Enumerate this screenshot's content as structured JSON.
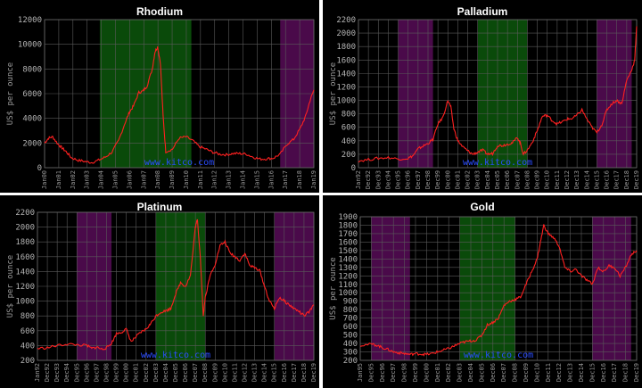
{
  "chart_data": [
    {
      "type": "line",
      "title": "Rhodium",
      "ylabel": "US$ per ounce",
      "watermark": "www.kitco.com",
      "line_color": "#ff2020",
      "x_tick_labels": [
        "Jan00",
        "Jan01",
        "Jan02",
        "Jan03",
        "Jan04",
        "Jan05",
        "Jan06",
        "Jan07",
        "Jan08",
        "Jan09",
        "Jan10",
        "Jan11",
        "Jan12",
        "Jan13",
        "Jan14",
        "Jan15",
        "Jan16",
        "Jan17",
        "Jan18",
        "Jan19"
      ],
      "y_ticks": [
        0,
        2000,
        4000,
        6000,
        8000,
        10000,
        12000
      ],
      "ylim": [
        0,
        12000
      ],
      "xlim": [
        2000,
        2020
      ],
      "bands": [
        {
          "from": 2004.1,
          "to": 2010.9,
          "color": "#0a4a0a"
        },
        {
          "from": 2017.5,
          "to": 2020.0,
          "color": "#4a0a4a"
        }
      ],
      "series": [
        {
          "x": [
            2000,
            2000.3,
            2000.6,
            2001,
            2001.3,
            2001.6,
            2002,
            2002.5,
            2003,
            2003.5,
            2004,
            2004.5,
            2005,
            2005.5,
            2006,
            2006.3,
            2006.6,
            2007,
            2007.3,
            2007.6,
            2008,
            2008.2,
            2008.4,
            2008.6,
            2008.8,
            2009,
            2009.5,
            2010,
            2010.5,
            2011,
            2011.5,
            2012,
            2012.5,
            2013,
            2013.5,
            2014,
            2014.5,
            2015,
            2015.5,
            2016,
            2016.5,
            2017,
            2017.5,
            2018,
            2018.5,
            2019,
            2019.4,
            2019.7,
            2020
          ],
          "y": [
            2000,
            2400,
            2500,
            1900,
            1600,
            1300,
            800,
            600,
            500,
            420,
            600,
            850,
            1250,
            2200,
            3700,
            4500,
            5000,
            6100,
            6200,
            6600,
            8000,
            9400,
            9800,
            8500,
            4200,
            1300,
            1500,
            2400,
            2500,
            2200,
            1700,
            1500,
            1250,
            1100,
            1050,
            1150,
            1150,
            1100,
            850,
            700,
            720,
            780,
            1100,
            1900,
            2300,
            3200,
            4200,
            5400,
            6300
          ]
        }
      ]
    },
    {
      "type": "line",
      "title": "Palladium",
      "ylabel": "US$ per ounce",
      "watermark": "www.kitco.com",
      "line_color": "#ff2020",
      "x_tick_labels": [
        "Jan92",
        "Dec92",
        "Dec93",
        "Dec94",
        "Dec95",
        "Dec96",
        "Dec97",
        "Dec98",
        "Dec99",
        "Dec00",
        "Dec01",
        "Dec02",
        "Dec03",
        "Dec04",
        "Dec05",
        "Dec06",
        "Dec07",
        "Dec08",
        "Dec09",
        "Dec10",
        "Dec11",
        "Dec12",
        "Dec13",
        "Dec14",
        "Dec15",
        "Dec16",
        "Dec17",
        "Dec18",
        "Dec19"
      ],
      "y_ticks": [
        0,
        200,
        400,
        600,
        800,
        1000,
        1200,
        1400,
        1600,
        1800,
        2000,
        2200
      ],
      "ylim": [
        0,
        2200
      ],
      "xlim": [
        1992,
        2020
      ],
      "bands": [
        {
          "from": 1996.0,
          "to": 1999.5,
          "color": "#4a0a4a"
        },
        {
          "from": 2004.0,
          "to": 2009.0,
          "color": "#0a4a0a"
        },
        {
          "from": 2016.0,
          "to": 2019.5,
          "color": "#4a0a4a"
        }
      ],
      "series": [
        {
          "x": [
            1992,
            1993,
            1994,
            1995,
            1996,
            1997,
            1997.5,
            1998,
            1998.5,
            1999,
            1999.5,
            2000,
            2000.5,
            2001,
            2001.3,
            2001.6,
            2002,
            2002.5,
            2003,
            2003.5,
            2004,
            2004.5,
            2005,
            2005.5,
            2006,
            2006.5,
            2007,
            2007.5,
            2008,
            2008.3,
            2008.6,
            2009,
            2009.5,
            2010,
            2010.5,
            2011,
            2011.5,
            2012,
            2012.5,
            2013,
            2013.5,
            2014,
            2014.5,
            2015,
            2015.5,
            2016,
            2016.5,
            2017,
            2017.5,
            2018,
            2018.5,
            2019,
            2019.5,
            2019.8,
            2020
          ],
          "y": [
            100,
            120,
            140,
            150,
            130,
            140,
            180,
            280,
            320,
            360,
            420,
            650,
            750,
            1000,
            900,
            580,
            400,
            310,
            250,
            200,
            230,
            260,
            200,
            210,
            330,
            330,
            350,
            370,
            450,
            360,
            200,
            260,
            380,
            550,
            760,
            780,
            700,
            650,
            680,
            720,
            730,
            780,
            860,
            720,
            600,
            520,
            640,
            860,
            950,
            1000,
            950,
            1300,
            1450,
            1600,
            2100
          ]
        }
      ]
    },
    {
      "type": "line",
      "title": "Platinum",
      "ylabel": "US$ per ounce",
      "watermark": "www.kitco.com",
      "line_color": "#ff2020",
      "x_tick_labels": [
        "Jan92",
        "Dec92",
        "Dec93",
        "Dec94",
        "Dec95",
        "Dec96",
        "Dec97",
        "Dec98",
        "Dec99",
        "Dec00",
        "Dec01",
        "Dec02",
        "Dec03",
        "Dec04",
        "Dec05",
        "Dec06",
        "Dec07",
        "Dec08",
        "Dec09",
        "Dec10",
        "Dec11",
        "Dec12",
        "Dec13",
        "Dec14",
        "Dec15",
        "Dec16",
        "Dec17",
        "Dec18",
        "Dec19"
      ],
      "y_ticks": [
        200,
        400,
        600,
        800,
        1000,
        1200,
        1400,
        1600,
        1800,
        2000,
        2200
      ],
      "ylim": [
        200,
        2200
      ],
      "xlim": [
        1992,
        2020
      ],
      "bands": [
        {
          "from": 1996.0,
          "to": 1999.5,
          "color": "#4a0a4a"
        },
        {
          "from": 2004.0,
          "to": 2009.0,
          "color": "#0a4a0a"
        },
        {
          "from": 2016.0,
          "to": 2020.0,
          "color": "#4a0a4a"
        }
      ],
      "series": [
        {
          "x": [
            1992,
            1993,
            1994,
            1995,
            1996,
            1997,
            1997.5,
            1998,
            1998.5,
            1999,
            1999.5,
            2000,
            2000.5,
            2001,
            2001.5,
            2002,
            2002.5,
            2003,
            2003.5,
            2004,
            2004.5,
            2005,
            2005.5,
            2006,
            2006.5,
            2007,
            2007.5,
            2008,
            2008.2,
            2008.5,
            2008.8,
            2009,
            2009.5,
            2010,
            2010.5,
            2011,
            2011.5,
            2012,
            2012.5,
            2013,
            2013.5,
            2014,
            2014.5,
            2015,
            2015.5,
            2016,
            2016.5,
            2017,
            2017.5,
            2018,
            2018.5,
            2019,
            2019.5,
            2020
          ],
          "y": [
            360,
            370,
            400,
            420,
            410,
            400,
            360,
            380,
            350,
            370,
            430,
            560,
            580,
            620,
            450,
            520,
            580,
            620,
            700,
            800,
            850,
            870,
            900,
            1100,
            1250,
            1200,
            1350,
            2000,
            2100,
            1600,
            800,
            1050,
            1350,
            1500,
            1750,
            1800,
            1650,
            1600,
            1550,
            1650,
            1480,
            1450,
            1420,
            1200,
            1000,
            900,
            1050,
            1000,
            950,
            900,
            860,
            800,
            850,
            950
          ]
        }
      ]
    },
    {
      "type": "line",
      "title": "Gold",
      "ylabel": "US$ per ounce",
      "watermark": "www.kitco.com",
      "line_color": "#ff2020",
      "x_tick_labels": [
        "Jan95",
        "Dec95",
        "Dec96",
        "Dec97",
        "Dec98",
        "Dec99",
        "Dec00",
        "Dec01",
        "Dec02",
        "Dec03",
        "Dec04",
        "Dec05",
        "Dec06",
        "Dec07",
        "Dec08",
        "Dec09",
        "Dec10",
        "Dec11",
        "Dec12",
        "Dec13",
        "Dec14",
        "Dec15",
        "Dec16",
        "Dec17",
        "Dec18",
        "Dec19"
      ],
      "y_ticks": [
        200,
        300,
        400,
        500,
        600,
        700,
        800,
        900,
        1000,
        1100,
        1200,
        1300,
        1400,
        1500,
        1600,
        1700,
        1800,
        1900
      ],
      "ylim": [
        200,
        1900
      ],
      "xlim": [
        1995,
        2020
      ],
      "bands": [
        {
          "from": 1996.0,
          "to": 1999.5,
          "color": "#4a0a4a"
        },
        {
          "from": 2004.0,
          "to": 2009.0,
          "color": "#0a4a0a"
        },
        {
          "from": 2016.0,
          "to": 2019.5,
          "color": "#4a0a4a"
        }
      ],
      "series": [
        {
          "x": [
            1995,
            1996,
            1996.5,
            1997,
            1997.5,
            1998,
            1998.5,
            1999,
            1999.5,
            2000,
            2000.5,
            2001,
            2001.5,
            2002,
            2002.5,
            2003,
            2003.5,
            2004,
            2004.5,
            2005,
            2005.5,
            2006,
            2006.5,
            2007,
            2007.5,
            2008,
            2008.5,
            2009,
            2009.5,
            2010,
            2010.5,
            2011,
            2011.3,
            2011.6,
            2012,
            2012.5,
            2013,
            2013.5,
            2014,
            2014.5,
            2015,
            2015.5,
            2016,
            2016.5,
            2017,
            2017.5,
            2018,
            2018.5,
            2019,
            2019.5,
            2020
          ],
          "y": [
            380,
            390,
            380,
            350,
            330,
            300,
            290,
            280,
            270,
            280,
            275,
            270,
            280,
            300,
            320,
            340,
            370,
            400,
            420,
            430,
            440,
            500,
            620,
            650,
            700,
            850,
            900,
            920,
            950,
            1100,
            1250,
            1400,
            1600,
            1800,
            1700,
            1650,
            1550,
            1300,
            1250,
            1280,
            1200,
            1150,
            1100,
            1300,
            1250,
            1320,
            1300,
            1200,
            1300,
            1450,
            1500
          ]
        }
      ]
    }
  ]
}
